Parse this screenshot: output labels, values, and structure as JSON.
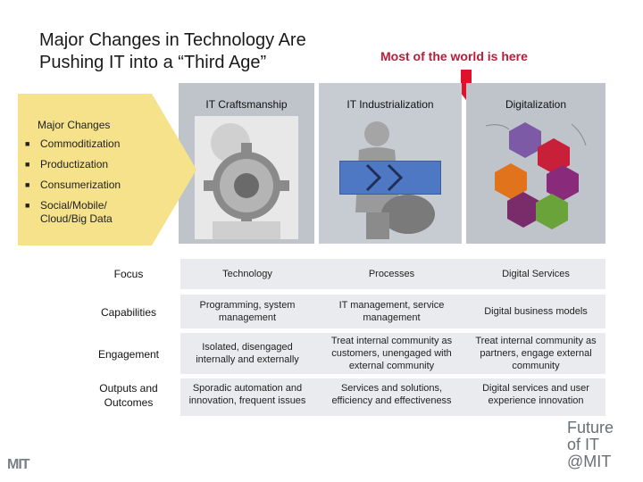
{
  "title": "Major Changes in Technology Are Pushing IT into a “Third Age”",
  "callout": "Most of the world is here",
  "columns": [
    "IT Craftsmanship",
    "IT Industrialization",
    "Digitalization"
  ],
  "changes": {
    "heading": "Major Changes",
    "items": [
      "Commoditization",
      "Productization",
      "Consumerization",
      "Social/Mobile/ Cloud/Big Data"
    ],
    "bullet": "■"
  },
  "rows": [
    {
      "label": "Focus",
      "values": [
        "Technology",
        "Processes",
        "Digital Services"
      ]
    },
    {
      "label": "Capabilities",
      "values": [
        "Programming, system management",
        "IT management, service management",
        "Digital business models"
      ]
    },
    {
      "label": "Engagement",
      "values": [
        "Isolated, disengaged internally and externally",
        "Treat internal community as customers, unengaged with external community",
        "Treat internal community as partners, engage external community"
      ]
    },
    {
      "label": "Outputs and Outcomes",
      "values": [
        "Sporadic automation and innovation, frequent issues",
        "Services and solutions, efficiency and effectiveness",
        "Digital services and user experience innovation"
      ]
    }
  ],
  "footer": {
    "logo": "MIT",
    "brand": [
      "Future",
      "of IT",
      "@MIT"
    ]
  },
  "colors": {
    "callout": "#b81d3a",
    "arrow": "#f5e28a",
    "blue": "#4f78c4",
    "band": "#bfc4cb"
  }
}
